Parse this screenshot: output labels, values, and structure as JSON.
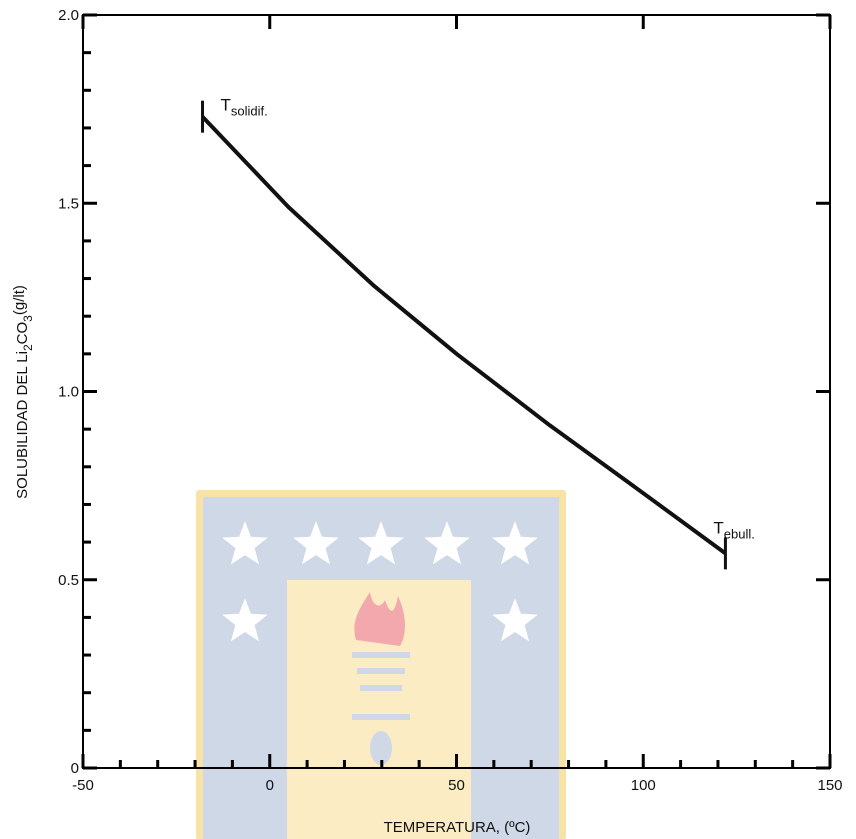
{
  "chart_data": {
    "type": "line",
    "title": "",
    "xlabel": "TEMPERATURA, (ºC)",
    "ylabel_main": "SOLUBILIDAD DEL Li",
    "ylabel_sub1": "2",
    "ylabel_mid": "CO",
    "ylabel_sub2": "3",
    "ylabel_unit": "(g/lt)",
    "xlim": [
      -50,
      150
    ],
    "ylim": [
      0,
      2.0
    ],
    "x_ticks": [
      -50,
      0,
      50,
      100,
      150
    ],
    "x_tick_labels": [
      "-50",
      "0",
      "50",
      "100",
      "150"
    ],
    "y_ticks": [
      0,
      0.5,
      1.0,
      1.5,
      2.0
    ],
    "y_tick_labels": [
      "0",
      "0.5",
      "1.0",
      "1.5",
      "2.0"
    ],
    "grid": false,
    "series": [
      {
        "x": [
          -18,
          5,
          28,
          50,
          75,
          100,
          122
        ],
        "y": [
          1.73,
          1.49,
          1.28,
          1.1,
          0.91,
          0.73,
          0.57
        ],
        "color": "#111111"
      }
    ],
    "annotations": [
      {
        "base": "T",
        "sub": "solidif.",
        "x": -18,
        "y": 1.73
      },
      {
        "base": "T",
        "sub": "ebull.",
        "x": 122,
        "y": 0.57
      }
    ]
  },
  "watermark": {
    "colors": {
      "shield": "#cfd8e6",
      "border": "#f7e3a6",
      "panel": "#fbecc4",
      "star": "#ffffff",
      "flame": "#f3a8ad",
      "torch": "#cfd8e6"
    },
    "icon": "university-shield-watermark"
  }
}
